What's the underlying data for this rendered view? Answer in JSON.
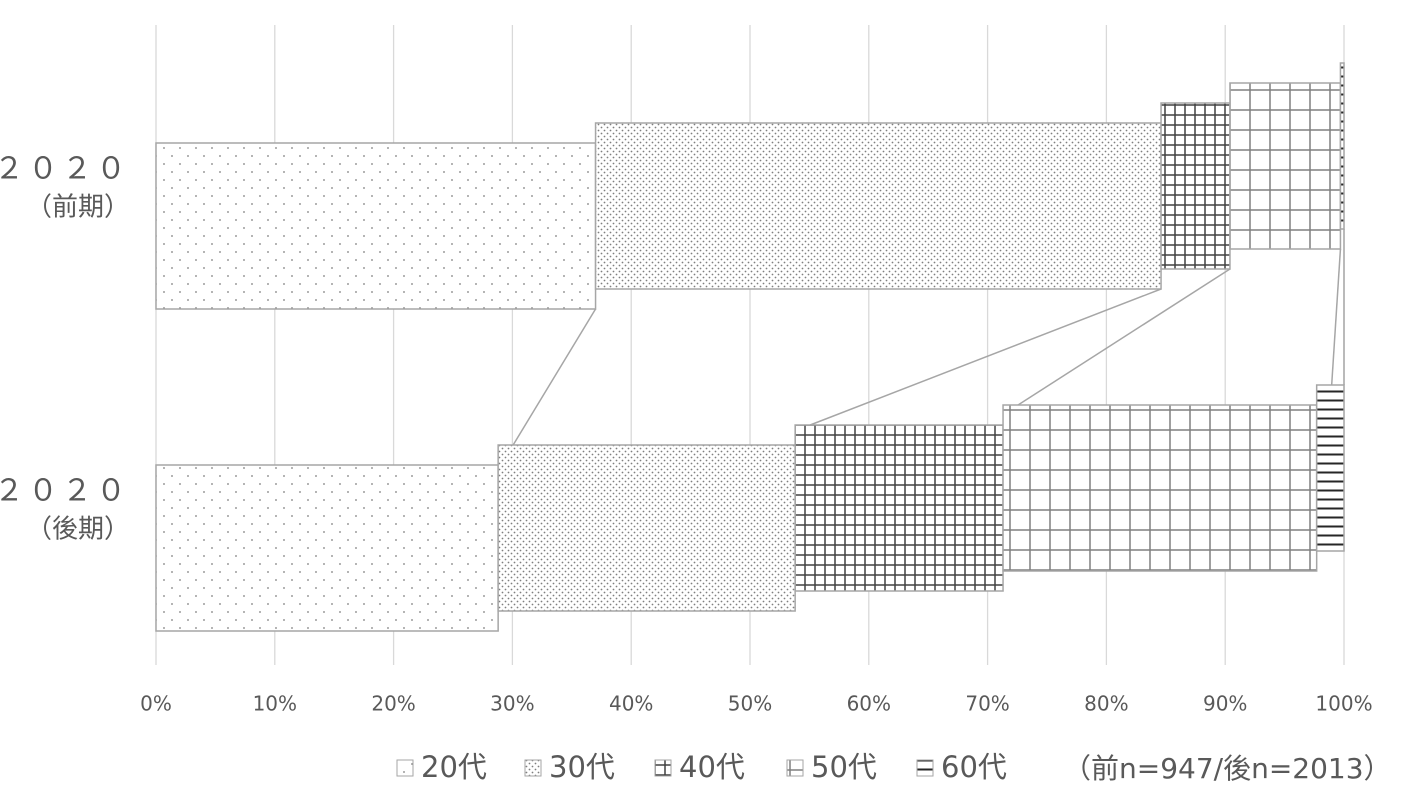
{
  "chart_data": {
    "type": "stacked-bar-horizontal",
    "categories": [
      [
        "２０２０",
        "（前期）"
      ],
      [
        "２０２０",
        "（後期）"
      ]
    ],
    "series": [
      {
        "name": "20代",
        "color": "#7f7f7f",
        "pattern": "sparse-dots",
        "values": [
          37.0,
          28.8
        ]
      },
      {
        "name": "30代",
        "color": "#7f7f7f",
        "pattern": "dense-dots",
        "values": [
          47.6,
          25.0
        ]
      },
      {
        "name": "40代",
        "color": "#404040",
        "pattern": "small-grid",
        "values": [
          5.8,
          17.5
        ]
      },
      {
        "name": "50代",
        "color": "#7f7f7f",
        "pattern": "large-grid",
        "values": [
          9.3,
          26.4
        ]
      },
      {
        "name": "60代",
        "color": "#262626",
        "pattern": "horizontal-lines",
        "values": [
          0.3,
          2.3
        ]
      }
    ],
    "xlim": [
      0,
      100
    ],
    "xticks": [
      {
        "value": 0,
        "label": "0%"
      },
      {
        "value": 10,
        "label": "10%"
      },
      {
        "value": 20,
        "label": "20%"
      },
      {
        "value": 30,
        "label": "30%"
      },
      {
        "value": 40,
        "label": "40%"
      },
      {
        "value": 50,
        "label": "50%"
      },
      {
        "value": 60,
        "label": "60%"
      },
      {
        "value": 70,
        "label": "70%"
      },
      {
        "value": 80,
        "label": "80%"
      },
      {
        "value": 90,
        "label": "90%"
      },
      {
        "value": 100,
        "label": "100%"
      }
    ],
    "grid": true,
    "legend": "bottom",
    "note": "（前n=947/後n=2013）"
  }
}
